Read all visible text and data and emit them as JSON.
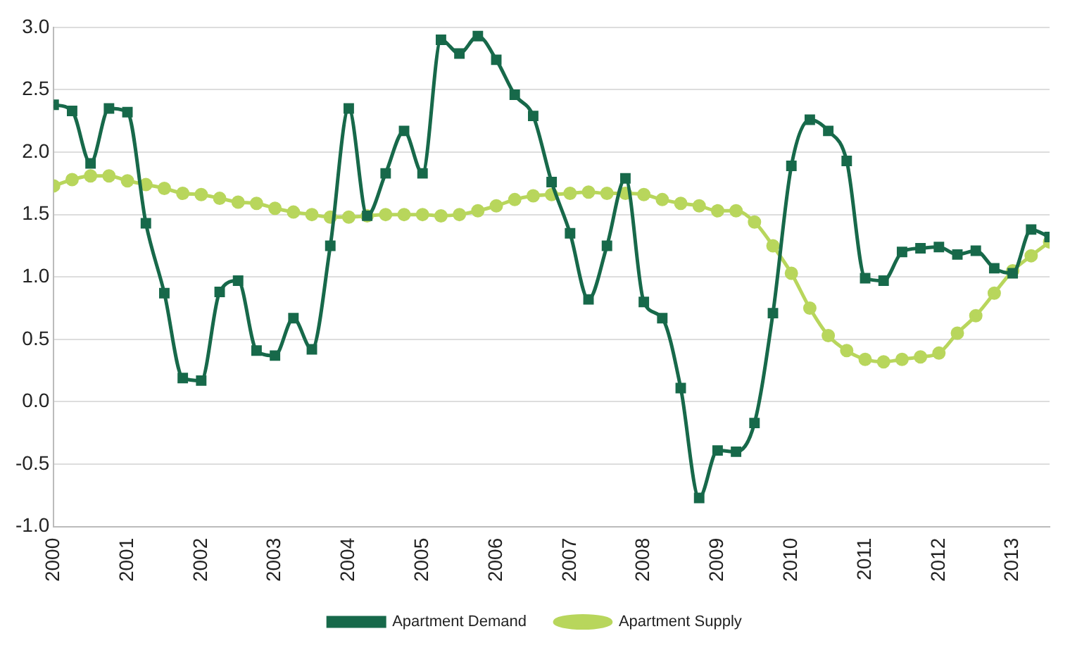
{
  "chart_data": {
    "type": "line",
    "x": [
      2000,
      2000.25,
      2000.5,
      2000.75,
      2001,
      2001.25,
      2001.5,
      2001.75,
      2002,
      2002.25,
      2002.5,
      2002.75,
      2003,
      2003.25,
      2003.5,
      2003.75,
      2004,
      2004.25,
      2004.5,
      2004.75,
      2005,
      2005.25,
      2005.5,
      2005.75,
      2006,
      2006.25,
      2006.5,
      2006.75,
      2007,
      2007.25,
      2007.5,
      2007.75,
      2008,
      2008.25,
      2008.5,
      2008.75,
      2009,
      2009.25,
      2009.5,
      2009.75,
      2010,
      2010.25,
      2010.5,
      2010.75,
      2011,
      2011.25,
      2011.5,
      2011.75,
      2012,
      2012.25,
      2012.5,
      2012.75,
      2013,
      2013.25,
      2013.5
    ],
    "series": [
      {
        "name": "Apartment Demand",
        "color": "#17694a",
        "marker": "square",
        "values": [
          2.38,
          2.33,
          1.91,
          2.35,
          2.32,
          1.43,
          0.87,
          0.19,
          0.17,
          0.88,
          0.97,
          0.41,
          0.37,
          0.67,
          0.42,
          1.25,
          2.35,
          1.49,
          1.83,
          2.17,
          1.83,
          2.9,
          2.79,
          2.93,
          2.74,
          2.46,
          2.29,
          1.76,
          1.35,
          0.82,
          1.25,
          1.79,
          0.8,
          0.67,
          0.11,
          -0.77,
          -0.39,
          -0.4,
          -0.17,
          0.71,
          1.89,
          2.26,
          2.17,
          1.93,
          0.99,
          0.97,
          1.2,
          1.23,
          1.24,
          1.18,
          1.21,
          1.07,
          1.03,
          1.38,
          1.32
        ]
      },
      {
        "name": "Apartment Supply",
        "color": "#b8d65c",
        "marker": "circle",
        "values": [
          1.73,
          1.78,
          1.81,
          1.81,
          1.77,
          1.74,
          1.71,
          1.67,
          1.66,
          1.63,
          1.6,
          1.59,
          1.55,
          1.52,
          1.5,
          1.48,
          1.48,
          1.49,
          1.5,
          1.5,
          1.5,
          1.49,
          1.5,
          1.53,
          1.57,
          1.62,
          1.65,
          1.66,
          1.67,
          1.68,
          1.67,
          1.67,
          1.66,
          1.62,
          1.59,
          1.57,
          1.53,
          1.53,
          1.44,
          1.25,
          1.03,
          0.75,
          0.53,
          0.41,
          0.34,
          0.32,
          0.34,
          0.36,
          0.39,
          0.55,
          0.69,
          0.87,
          1.05,
          1.17,
          1.28
        ]
      }
    ],
    "xlim": [
      2000,
      2013.5
    ],
    "xticks": [
      2000,
      2001,
      2002,
      2003,
      2004,
      2005,
      2006,
      2007,
      2008,
      2009,
      2010,
      2011,
      2012,
      2013
    ],
    "ylim": [
      -1,
      3
    ],
    "yticks": [
      {
        "value": -1,
        "label": "-1.0"
      },
      {
        "value": -0.5,
        "label": "-0.5"
      },
      {
        "value": 0,
        "label": "0.0"
      },
      {
        "value": 0.5,
        "label": "0.5"
      },
      {
        "value": 1,
        "label": "1.0"
      },
      {
        "value": 1.5,
        "label": "1.5"
      },
      {
        "value": 2,
        "label": "2.0"
      },
      {
        "value": 2.5,
        "label": "2.5"
      },
      {
        "value": 3,
        "label": "3.0"
      }
    ],
    "grid": "y",
    "legend": "bottom"
  }
}
